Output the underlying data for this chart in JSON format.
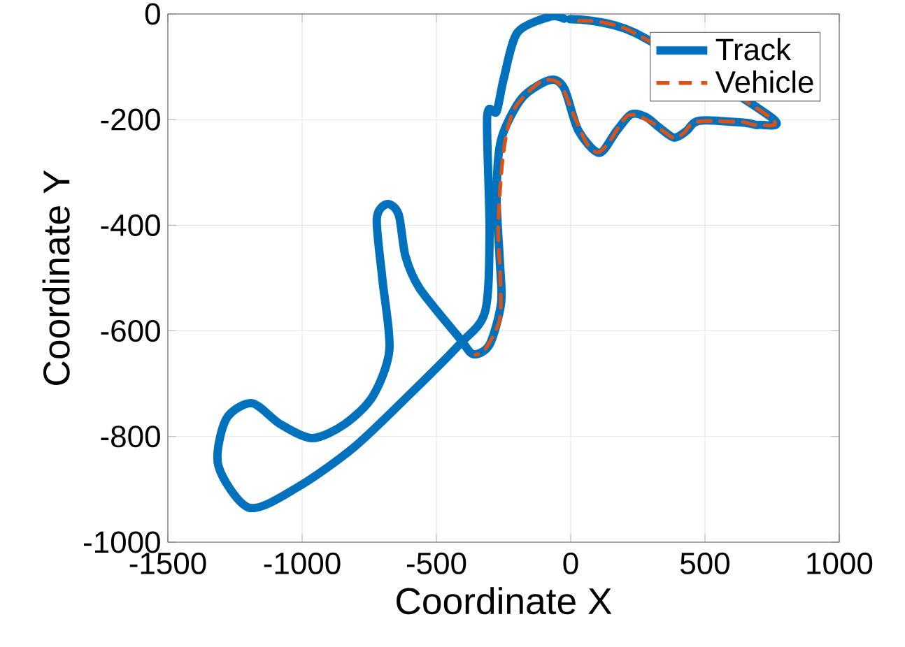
{
  "chart_data": {
    "type": "line",
    "xlabel": "Coordinate X",
    "ylabel": "Coordinate Y",
    "xlim": [
      -1500,
      1000
    ],
    "ylim": [
      -1000,
      0
    ],
    "xticks": [
      -1500,
      -1000,
      -500,
      0,
      500,
      1000
    ],
    "yticks": [
      -1000,
      -800,
      -600,
      -400,
      -200,
      0
    ],
    "grid": true,
    "legend": "top right",
    "marker": "none",
    "series": [
      {
        "name": "Track",
        "color": "#0072bd",
        "line_style": "solid",
        "x": [
          -3,
          236,
          745,
          700,
          650,
          480,
          430,
          384,
          330,
          280,
          225,
          170,
          106,
          28,
          -24,
          -76,
          -181,
          -259,
          -276,
          -264,
          -259,
          -302,
          -363,
          -415,
          -562,
          -615,
          -641,
          -684,
          -722,
          -701,
          -675,
          -736,
          -840,
          -962,
          -1083,
          -1187,
          -1283,
          -1312,
          -1196,
          -1014,
          -806,
          -597,
          -415,
          -319,
          -302,
          -311,
          -276,
          -250,
          -198,
          -76,
          -25
        ],
        "values": [
          -10,
          -35,
          -195,
          -210,
          -206,
          -202,
          -222,
          -234,
          -215,
          -195,
          -190,
          -222,
          -263,
          -220,
          -141,
          -125,
          -159,
          -238,
          -344,
          -467,
          -547,
          -626,
          -644,
          -613,
          -520,
          -459,
          -379,
          -360,
          -388,
          -503,
          -635,
          -723,
          -776,
          -803,
          -776,
          -737,
          -767,
          -855,
          -935,
          -895,
          -820,
          -719,
          -626,
          -564,
          -415,
          -194,
          -185,
          -124,
          -35,
          -5,
          -9
        ]
      },
      {
        "name": "Vehicle",
        "color": "#d95319",
        "line_style": "dashed",
        "x": [
          30,
          230,
          740,
          690,
          640,
          470,
          420,
          380,
          300,
          215,
          140,
          100,
          60,
          10,
          -40,
          -110,
          -210,
          -250,
          -270,
          -262,
          -265,
          -320,
          -355
        ],
        "values": [
          -13,
          -34,
          -195,
          -210,
          -205,
          -204,
          -226,
          -234,
          -205,
          -192,
          -245,
          -262,
          -245,
          -190,
          -133,
          -128,
          -180,
          -260,
          -400,
          -500,
          -580,
          -636,
          -645
        ]
      }
    ]
  }
}
